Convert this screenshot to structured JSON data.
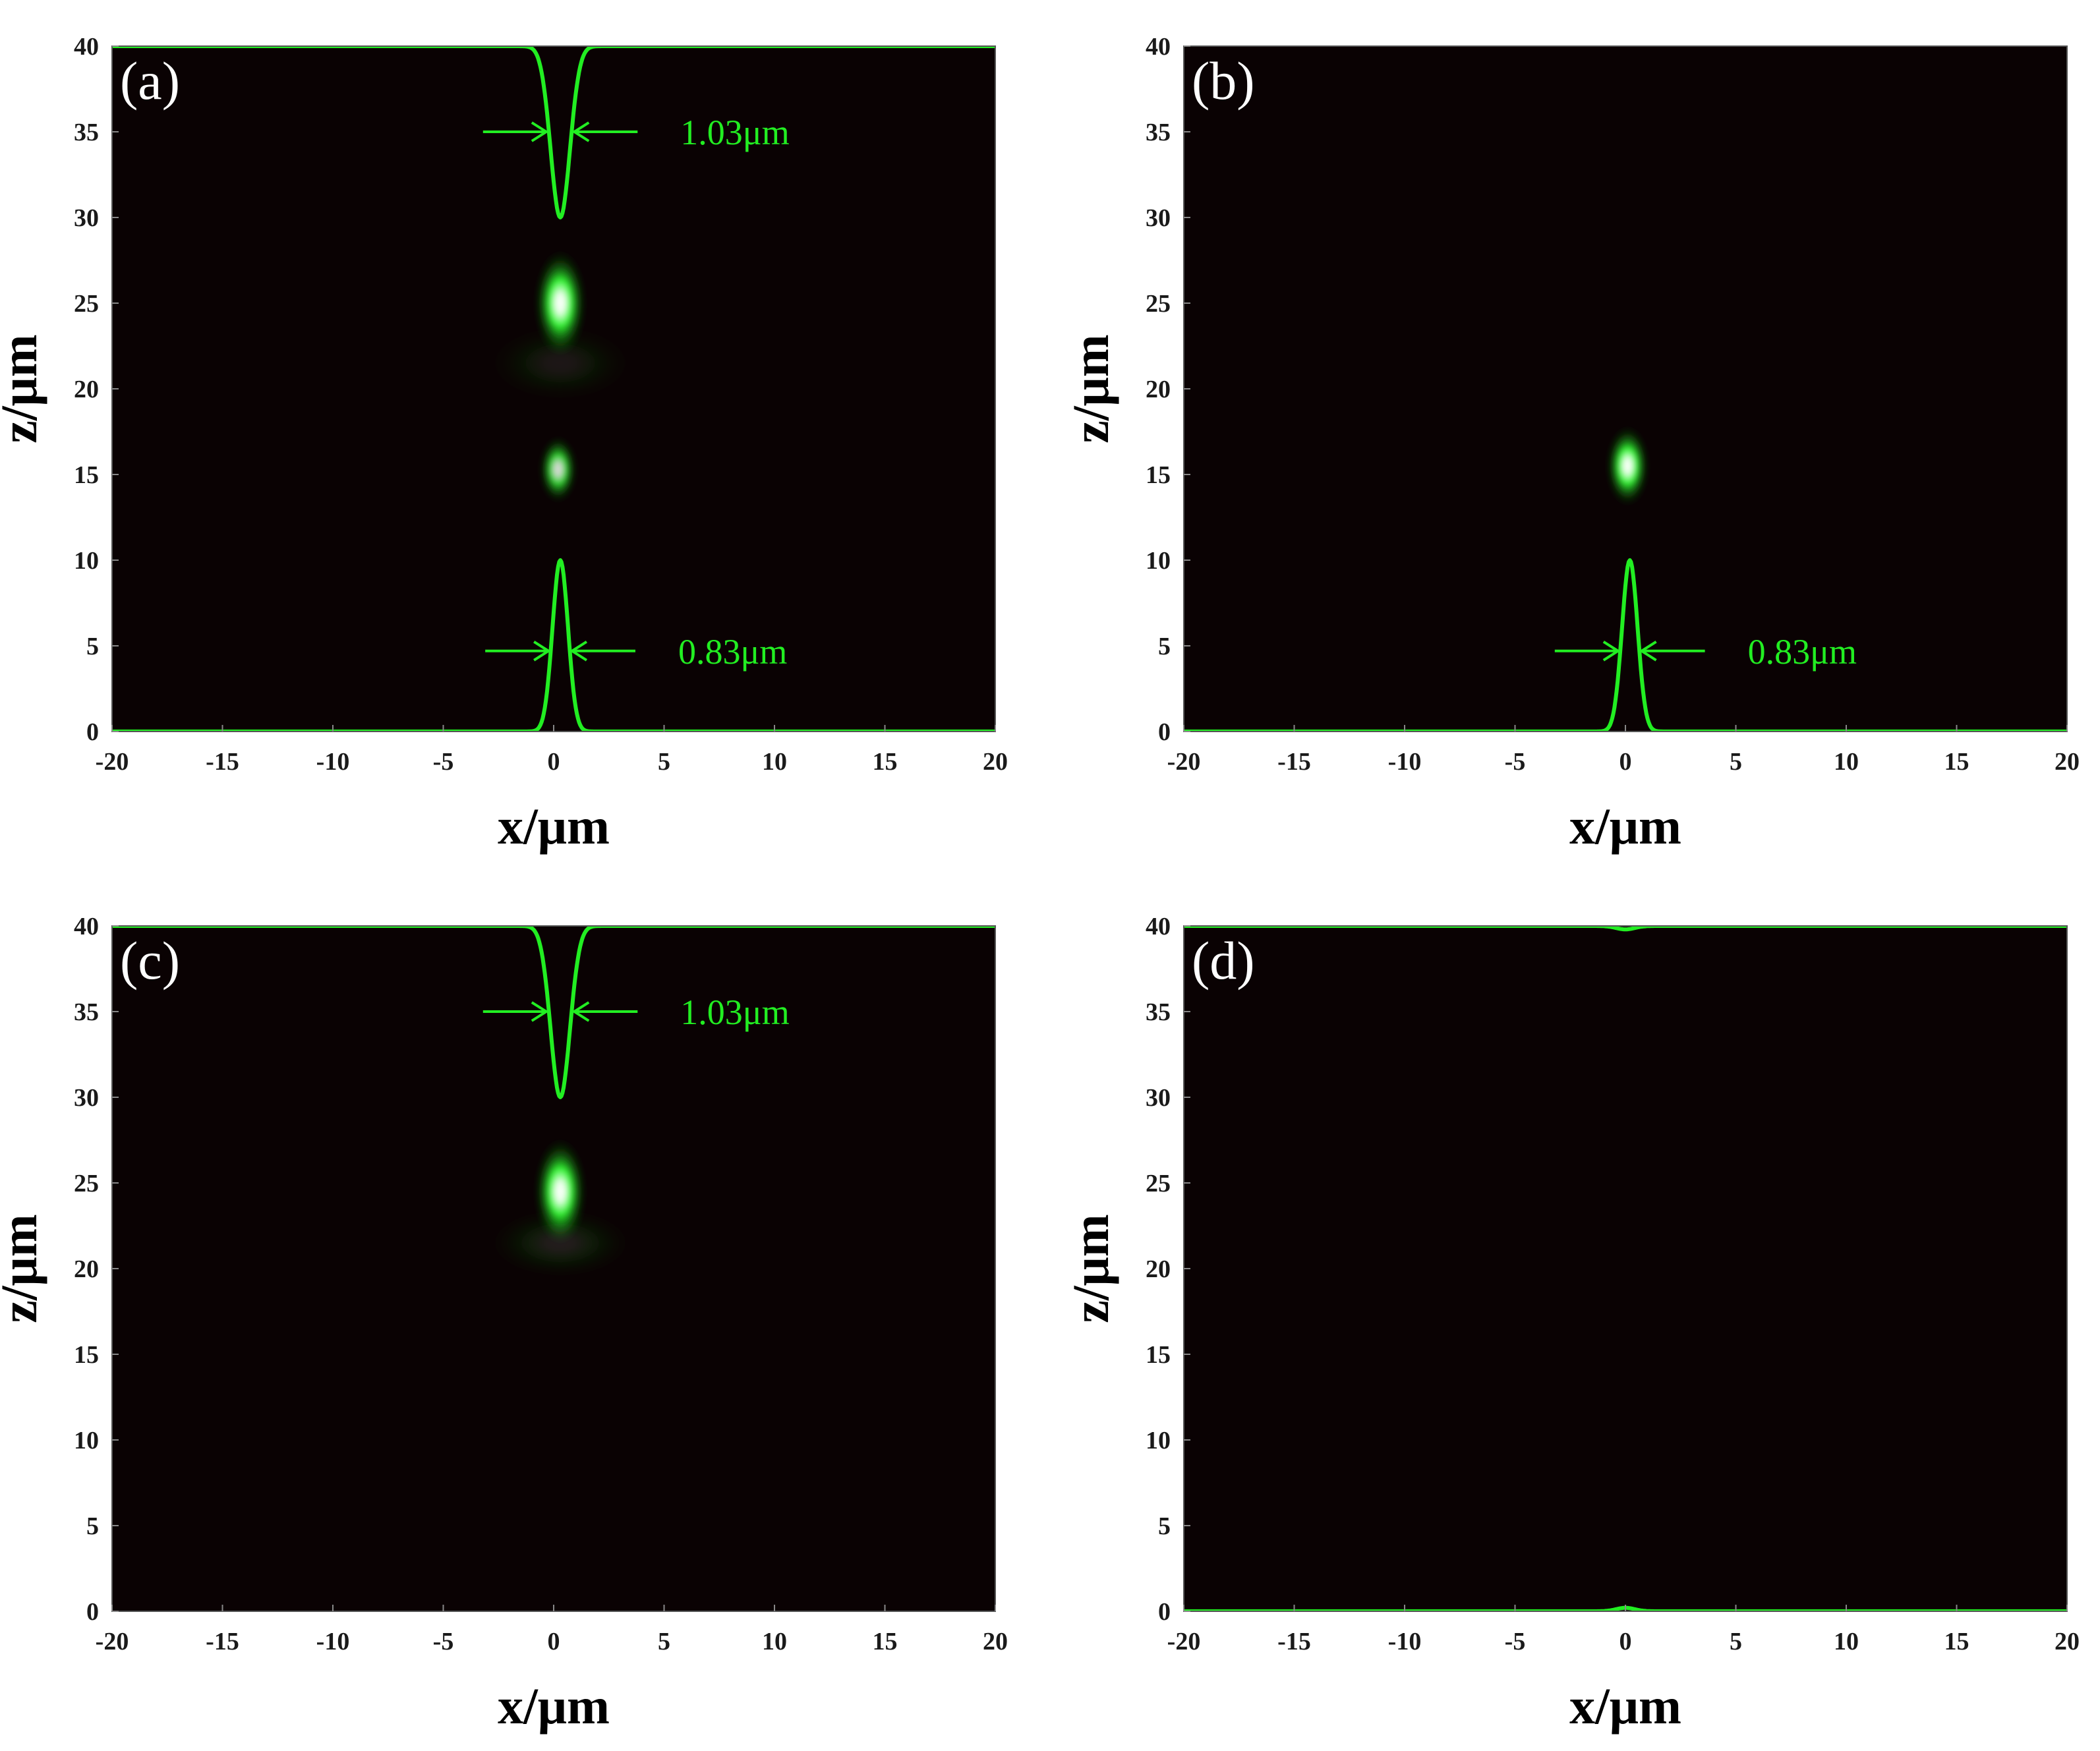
{
  "figure": {
    "background": "#ffffff",
    "plot_background": "#0a0203",
    "curve_color": "#22ee22",
    "annotation_color": "#22ee22"
  },
  "chart_data": [
    {
      "type": "heatmap",
      "panel_label": "(a)",
      "xlabel": "x/μm",
      "ylabel": "z/μm",
      "xlim": [
        -20,
        20
      ],
      "ylim": [
        0,
        40
      ],
      "xticks": [
        "-20",
        "-15",
        "-10",
        "-5",
        "0",
        "5",
        "10",
        "15",
        "20"
      ],
      "yticks": [
        "0",
        "5",
        "10",
        "15",
        "20",
        "25",
        "30",
        "35",
        "40"
      ],
      "spots": [
        {
          "name": "spot-upper",
          "x": 0.3,
          "z": 25.0,
          "intensity": 1.0,
          "sx": 0.55,
          "sz": 1.6
        },
        {
          "name": "spot-lower",
          "x": 0.2,
          "z": 15.3,
          "intensity": 0.85,
          "sx": 0.4,
          "sz": 1.0
        },
        {
          "name": "ghost-lobe",
          "x": 0.3,
          "z": 21.5,
          "intensity": 0.08,
          "sx": 1.6,
          "sz": 1.2
        }
      ],
      "profiles": [
        {
          "name": "bottom-profile",
          "direction": "up",
          "baseline_z": 0,
          "peak_z": 10,
          "center_x": 0.3,
          "fwhm": 0.83,
          "label": "0.83μm",
          "label_z": 4.7
        },
        {
          "name": "top-profile",
          "direction": "down",
          "baseline_z": 40,
          "peak_z": 30,
          "center_x": 0.3,
          "fwhm": 1.03,
          "label": "1.03μm",
          "label_z": 35.0
        }
      ]
    },
    {
      "type": "heatmap",
      "panel_label": "(b)",
      "xlabel": "x/μm",
      "ylabel": "z/μm",
      "xlim": [
        -20,
        20
      ],
      "ylim": [
        0,
        40
      ],
      "xticks": [
        "-20",
        "-15",
        "-10",
        "-5",
        "0",
        "5",
        "10",
        "15",
        "20"
      ],
      "yticks": [
        "0",
        "5",
        "10",
        "15",
        "20",
        "25",
        "30",
        "35",
        "40"
      ],
      "spots": [
        {
          "name": "spot-single",
          "x": 0.1,
          "z": 15.5,
          "intensity": 1.0,
          "sx": 0.45,
          "sz": 1.2
        }
      ],
      "profiles": [
        {
          "name": "bottom-profile",
          "direction": "up",
          "baseline_z": 0,
          "peak_z": 10,
          "center_x": 0.2,
          "fwhm": 0.83,
          "label": "0.83μm",
          "label_z": 4.7
        }
      ]
    },
    {
      "type": "heatmap",
      "panel_label": "(c)",
      "xlabel": "x/μm",
      "ylabel": "z/μm",
      "xlim": [
        -20,
        20
      ],
      "ylim": [
        0,
        40
      ],
      "xticks": [
        "-20",
        "-15",
        "-10",
        "-5",
        "0",
        "5",
        "10",
        "15",
        "20"
      ],
      "yticks": [
        "0",
        "5",
        "10",
        "15",
        "20",
        "25",
        "30",
        "35",
        "40"
      ],
      "spots": [
        {
          "name": "spot-single",
          "x": 0.3,
          "z": 24.5,
          "intensity": 1.0,
          "sx": 0.55,
          "sz": 1.6
        },
        {
          "name": "ghost-lobe",
          "x": 0.3,
          "z": 21.5,
          "intensity": 0.1,
          "sx": 1.6,
          "sz": 1.1
        }
      ],
      "profiles": [
        {
          "name": "top-profile",
          "direction": "down",
          "baseline_z": 40,
          "peak_z": 30,
          "center_x": 0.3,
          "fwhm": 1.03,
          "label": "1.03μm",
          "label_z": 35.0
        }
      ]
    },
    {
      "type": "heatmap",
      "panel_label": "(d)",
      "xlabel": "x/μm",
      "ylabel": "z/μm",
      "xlim": [
        -20,
        20
      ],
      "ylim": [
        0,
        40
      ],
      "xticks": [
        "-20",
        "-15",
        "-10",
        "-5",
        "0",
        "5",
        "10",
        "15",
        "20"
      ],
      "yticks": [
        "0",
        "5",
        "10",
        "15",
        "20",
        "25",
        "30",
        "35",
        "40"
      ],
      "spots": [],
      "profiles": [
        {
          "name": "bottom-profile",
          "direction": "up",
          "baseline_z": 0,
          "peak_z": 0.2,
          "center_x": 0.0,
          "fwhm": 1.0,
          "label": "",
          "label_z": 0
        },
        {
          "name": "top-profile",
          "direction": "down",
          "baseline_z": 40,
          "peak_z": 39.8,
          "center_x": 0.0,
          "fwhm": 1.0,
          "label": "",
          "label_z": 0
        }
      ]
    }
  ]
}
